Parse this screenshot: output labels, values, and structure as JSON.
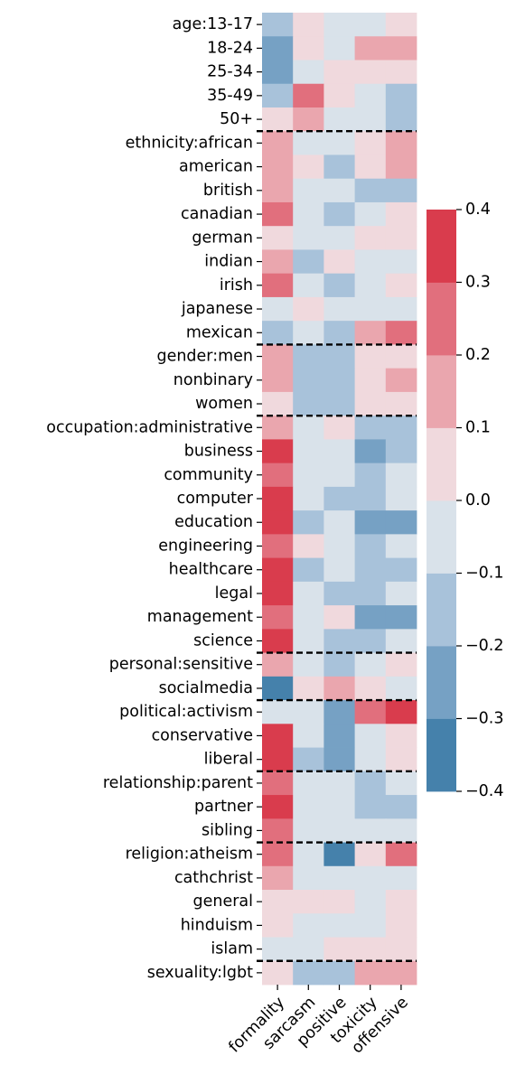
{
  "chart_data": {
    "type": "heatmap",
    "title": "",
    "xlabel": "",
    "ylabel": "",
    "columns": [
      "formality",
      "sarcasm",
      "positive",
      "toxicity",
      "offensive"
    ],
    "rows": [
      "age:13-17",
      "18-24",
      "25-34",
      "35-49",
      "50+",
      "ethnicity:african",
      "american",
      "british",
      "canadian",
      "german",
      "indian",
      "irish",
      "japanese",
      "mexican",
      "gender:men",
      "nonbinary",
      "women",
      "occupation:administrative",
      "business",
      "community",
      "computer",
      "education",
      "engineering",
      "healthcare",
      "legal",
      "management",
      "science",
      "personal:sensitive",
      "socialmedia",
      "political:activism",
      "conservative",
      "liberal",
      "relationship:parent",
      "partner",
      "sibling",
      "religion:atheism",
      "cathchrist",
      "general",
      "hinduism",
      "islam",
      "sexuality:lgbt"
    ],
    "values": [
      [
        -0.15,
        0.05,
        -0.05,
        -0.05,
        0.05
      ],
      [
        -0.25,
        0.05,
        -0.05,
        0.15,
        0.15
      ],
      [
        -0.25,
        -0.05,
        0.05,
        0.05,
        0.05
      ],
      [
        -0.15,
        0.25,
        0.05,
        -0.05,
        -0.15
      ],
      [
        0.05,
        0.15,
        -0.05,
        -0.05,
        -0.15
      ],
      [
        0.15,
        -0.05,
        -0.05,
        0.05,
        0.15
      ],
      [
        0.15,
        0.05,
        -0.15,
        0.05,
        0.15
      ],
      [
        0.15,
        -0.05,
        -0.05,
        -0.15,
        -0.15
      ],
      [
        0.25,
        -0.05,
        -0.15,
        -0.05,
        0.05
      ],
      [
        0.05,
        -0.05,
        -0.05,
        0.05,
        0.05
      ],
      [
        0.15,
        -0.15,
        0.05,
        -0.05,
        -0.05
      ],
      [
        0.25,
        -0.05,
        -0.15,
        -0.05,
        0.05
      ],
      [
        -0.05,
        0.05,
        -0.05,
        -0.05,
        -0.05
      ],
      [
        -0.15,
        -0.05,
        -0.15,
        0.15,
        0.25
      ],
      [
        0.15,
        -0.15,
        -0.15,
        0.05,
        0.05
      ],
      [
        0.15,
        -0.15,
        -0.15,
        0.05,
        0.15
      ],
      [
        0.05,
        -0.15,
        -0.15,
        0.05,
        0.05
      ],
      [
        0.15,
        -0.05,
        0.05,
        -0.15,
        -0.15
      ],
      [
        0.35,
        -0.05,
        -0.05,
        -0.25,
        -0.15
      ],
      [
        0.25,
        -0.05,
        -0.05,
        -0.15,
        -0.05
      ],
      [
        0.35,
        -0.05,
        -0.15,
        -0.15,
        -0.05
      ],
      [
        0.35,
        -0.15,
        -0.05,
        -0.25,
        -0.25
      ],
      [
        0.25,
        0.05,
        -0.05,
        -0.15,
        -0.05
      ],
      [
        0.35,
        -0.15,
        -0.05,
        -0.15,
        -0.15
      ],
      [
        0.35,
        -0.05,
        -0.15,
        -0.15,
        -0.05
      ],
      [
        0.25,
        -0.05,
        0.05,
        -0.25,
        -0.25
      ],
      [
        0.35,
        -0.05,
        -0.15,
        -0.15,
        -0.05
      ],
      [
        0.15,
        -0.05,
        -0.15,
        -0.05,
        0.05
      ],
      [
        -0.35,
        0.05,
        0.15,
        0.05,
        -0.05
      ],
      [
        -0.05,
        -0.05,
        -0.25,
        0.25,
        0.35
      ],
      [
        0.35,
        -0.05,
        -0.25,
        -0.05,
        0.05
      ],
      [
        0.35,
        -0.15,
        -0.25,
        -0.05,
        0.05
      ],
      [
        0.25,
        -0.05,
        -0.05,
        -0.15,
        -0.05
      ],
      [
        0.35,
        -0.05,
        -0.05,
        -0.15,
        -0.15
      ],
      [
        0.25,
        -0.05,
        -0.05,
        -0.05,
        -0.05
      ],
      [
        0.25,
        -0.05,
        -0.35,
        0.05,
        0.25
      ],
      [
        0.15,
        -0.05,
        -0.05,
        -0.05,
        -0.05
      ],
      [
        0.05,
        0.05,
        0.05,
        -0.05,
        0.05
      ],
      [
        0.05,
        -0.05,
        -0.05,
        -0.05,
        0.05
      ],
      [
        -0.05,
        -0.05,
        0.05,
        0.05,
        0.05
      ],
      [
        0.05,
        -0.15,
        -0.15,
        0.15,
        0.15
      ]
    ],
    "group_breaks_after_row": [
      4,
      13,
      16,
      26,
      28,
      31,
      34,
      39
    ],
    "colorbar": {
      "min": -0.4,
      "max": 0.4,
      "ticks": [
        -0.4,
        -0.3,
        -0.2,
        -0.1,
        0.0,
        0.1,
        0.2,
        0.3,
        0.4
      ],
      "tick_labels": [
        "−0.4",
        "−0.3",
        "−0.2",
        "−0.1",
        "0.0",
        "0.1",
        "0.2",
        "0.3",
        "0.4"
      ],
      "bins": [
        {
          "from": -0.4,
          "to": -0.3,
          "color": "#4581ab"
        },
        {
          "from": -0.3,
          "to": -0.2,
          "color": "#76a1c4"
        },
        {
          "from": -0.2,
          "to": -0.1,
          "color": "#a8c2da"
        },
        {
          "from": -0.1,
          "to": 0.0,
          "color": "#d9e2ea"
        },
        {
          "from": 0.0,
          "to": 0.1,
          "color": "#f0d9dd"
        },
        {
          "from": 0.1,
          "to": 0.2,
          "color": "#eaa6ae"
        },
        {
          "from": 0.2,
          "to": 0.3,
          "color": "#e16f7d"
        },
        {
          "from": 0.3,
          "to": 0.4,
          "color": "#d93c4d"
        }
      ]
    },
    "grid": false,
    "legend": "colorbar-right"
  }
}
